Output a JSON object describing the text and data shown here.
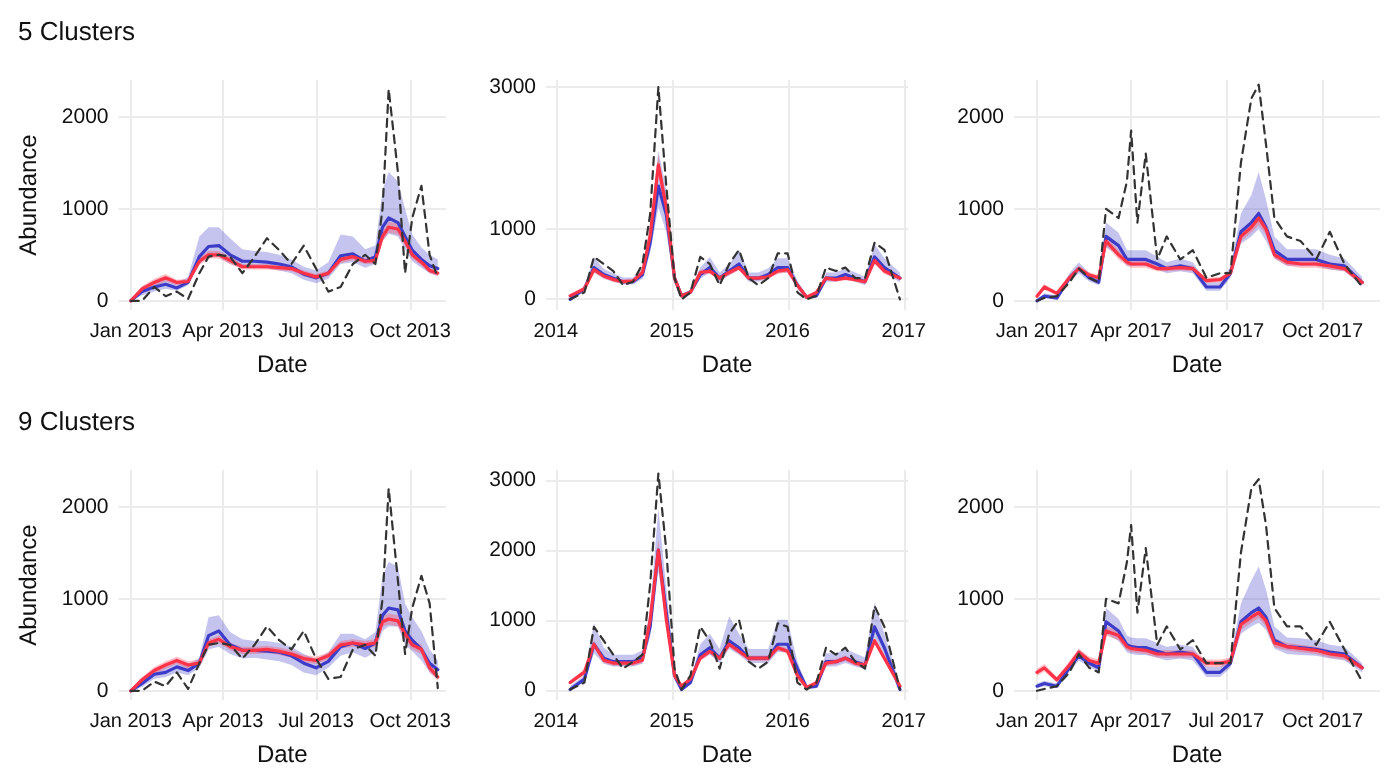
{
  "chart_data": [
    {
      "type": "line",
      "title": "5 Clusters",
      "xlabel": "Date",
      "ylabel": "Abundance",
      "grid": true,
      "marker": "none",
      "x": [
        "2013-01-01",
        "2013-01-12",
        "2013-01-24",
        "2013-02-04",
        "2013-02-15",
        "2013-02-26",
        "2013-03-09",
        "2013-03-18",
        "2013-03-28",
        "2013-04-08",
        "2013-04-20",
        "2013-05-02",
        "2013-05-14",
        "2013-05-26",
        "2013-06-07",
        "2013-06-19",
        "2013-07-01",
        "2013-07-13",
        "2013-07-25",
        "2013-08-06",
        "2013-08-18",
        "2013-08-28",
        "2013-09-04",
        "2013-09-10",
        "2013-09-19",
        "2013-09-26",
        "2013-10-03",
        "2013-10-12",
        "2013-10-20",
        "2013-10-28"
      ],
      "xlim": [
        "2012-12-20",
        "2013-11-05"
      ],
      "xticks": [
        {
          "value": "2013-01",
          "label": "Jan 2013"
        },
        {
          "value": "2013-04",
          "label": "Apr 2013"
        },
        {
          "value": "2013-07",
          "label": "Jul 2013"
        },
        {
          "value": "2013-10",
          "label": "Oct 2013"
        }
      ],
      "ylim": [
        -100,
        2400
      ],
      "yticks": [
        0,
        1000,
        2000
      ],
      "series": [
        {
          "color": "#3c3cc8",
          "line_style": "solid",
          "values": [
            0,
            100,
            150,
            180,
            140,
            200,
            480,
            590,
            600,
            500,
            430,
            430,
            420,
            400,
            370,
            290,
            250,
            300,
            490,
            510,
            430,
            480,
            800,
            900,
            850,
            700,
            550,
            450,
            380,
            350
          ],
          "lower": [
            0,
            60,
            100,
            130,
            110,
            170,
            400,
            480,
            480,
            400,
            360,
            360,
            350,
            330,
            300,
            230,
            190,
            240,
            400,
            420,
            360,
            400,
            650,
            730,
            700,
            560,
            430,
            360,
            300,
            270
          ],
          "upper": [
            0,
            150,
            220,
            260,
            200,
            260,
            700,
            800,
            800,
            680,
            560,
            540,
            530,
            500,
            450,
            370,
            330,
            420,
            720,
            700,
            560,
            600,
            1200,
            1400,
            1300,
            1000,
            720,
            580,
            500,
            450
          ]
        },
        {
          "color": "#ff3347",
          "line_style": "solid",
          "values": [
            0,
            130,
            200,
            250,
            200,
            210,
            430,
            500,
            500,
            440,
            370,
            370,
            370,
            360,
            350,
            300,
            260,
            300,
            450,
            480,
            430,
            440,
            700,
            800,
            780,
            650,
            500,
            420,
            330,
            300
          ],
          "lower": [
            0,
            100,
            160,
            210,
            170,
            180,
            390,
            460,
            460,
            400,
            340,
            340,
            340,
            330,
            320,
            270,
            230,
            270,
            410,
            440,
            400,
            400,
            650,
            740,
            720,
            600,
            460,
            380,
            300,
            270
          ],
          "upper": [
            0,
            160,
            240,
            290,
            230,
            240,
            470,
            540,
            540,
            480,
            400,
            400,
            400,
            390,
            380,
            330,
            290,
            330,
            490,
            520,
            460,
            480,
            750,
            860,
            840,
            700,
            540,
            460,
            360,
            330
          ]
        },
        {
          "color": "#333333",
          "line_style": "dashed",
          "values": [
            0,
            0,
            150,
            50,
            100,
            20,
            300,
            480,
            500,
            480,
            300,
            480,
            680,
            550,
            400,
            600,
            350,
            100,
            150,
            400,
            500,
            400,
            1000,
            2300,
            1400,
            300,
            900,
            1250,
            500,
            250
          ]
        }
      ]
    },
    {
      "type": "line",
      "xlabel": "Date",
      "grid": true,
      "marker": "none",
      "x": [
        "2014-02-15",
        "2014-04-01",
        "2014-05-01",
        "2014-06-01",
        "2014-07-01",
        "2014-08-01",
        "2014-09-01",
        "2014-10-01",
        "2014-10-25",
        "2014-11-20",
        "2014-12-15",
        "2015-01-10",
        "2015-02-01",
        "2015-03-01",
        "2015-04-01",
        "2015-05-01",
        "2015-06-01",
        "2015-07-01",
        "2015-08-01",
        "2015-09-01",
        "2015-10-01",
        "2015-11-01",
        "2015-12-01",
        "2016-01-01",
        "2016-02-01",
        "2016-03-01",
        "2016-04-01",
        "2016-05-01",
        "2016-06-01",
        "2016-07-01",
        "2016-08-01",
        "2016-09-01",
        "2016-10-01",
        "2016-11-01",
        "2016-12-20"
      ],
      "xlim": [
        "2013-12-01",
        "2017-01-15"
      ],
      "xticks": [
        {
          "value": "2014",
          "label": "2014"
        },
        {
          "value": "2015",
          "label": "2015"
        },
        {
          "value": "2016",
          "label": "2016"
        },
        {
          "value": "2017",
          "label": "2017"
        }
      ],
      "ylim": [
        -150,
        3100
      ],
      "yticks": [
        0,
        1000,
        3000
      ],
      "series": [
        {
          "color": "#3c3cc8",
          "line_style": "solid",
          "values": [
            0,
            150,
            450,
            350,
            300,
            250,
            250,
            350,
            800,
            1600,
            1200,
            300,
            50,
            100,
            350,
            450,
            300,
            400,
            500,
            300,
            300,
            350,
            450,
            450,
            200,
            30,
            50,
            300,
            300,
            350,
            300,
            250,
            600,
            450,
            300
          ],
          "lower": [
            0,
            120,
            380,
            290,
            250,
            210,
            210,
            290,
            650,
            1300,
            950,
            230,
            20,
            70,
            290,
            380,
            250,
            340,
            420,
            250,
            250,
            290,
            380,
            380,
            160,
            10,
            30,
            250,
            250,
            290,
            250,
            200,
            500,
            380,
            240
          ],
          "upper": [
            0,
            190,
            600,
            430,
            370,
            310,
            310,
            440,
            1050,
            2100,
            1550,
            380,
            80,
            140,
            450,
            600,
            380,
            500,
            700,
            380,
            380,
            440,
            580,
            580,
            260,
            60,
            80,
            380,
            380,
            440,
            380,
            320,
            780,
            580,
            380
          ]
        },
        {
          "color": "#ff3347",
          "line_style": "solid",
          "values": [
            50,
            150,
            420,
            330,
            280,
            250,
            260,
            380,
            900,
            1900,
            1300,
            300,
            50,
            100,
            380,
            400,
            300,
            380,
            450,
            300,
            300,
            320,
            400,
            420,
            200,
            30,
            100,
            300,
            280,
            300,
            280,
            250,
            550,
            400,
            300
          ],
          "lower": [
            30,
            120,
            380,
            300,
            250,
            220,
            230,
            340,
            820,
            1750,
            1180,
            260,
            30,
            80,
            340,
            360,
            270,
            340,
            410,
            270,
            270,
            290,
            360,
            380,
            170,
            15,
            80,
            270,
            250,
            270,
            250,
            220,
            500,
            360,
            270
          ],
          "upper": [
            70,
            180,
            460,
            360,
            310,
            280,
            290,
            420,
            980,
            2050,
            1420,
            340,
            70,
            120,
            420,
            440,
            330,
            420,
            490,
            330,
            330,
            350,
            440,
            460,
            230,
            45,
            120,
            330,
            310,
            330,
            310,
            280,
            600,
            440,
            330
          ]
        },
        {
          "color": "#333333",
          "line_style": "dashed",
          "values": [
            0,
            100,
            600,
            500,
            400,
            200,
            250,
            500,
            1200,
            3000,
            1600,
            300,
            0,
            100,
            600,
            500,
            200,
            500,
            700,
            300,
            200,
            300,
            650,
            650,
            100,
            0,
            50,
            450,
            400,
            450,
            300,
            300,
            800,
            700,
            0
          ]
        }
      ]
    },
    {
      "type": "line",
      "xlabel": "Date",
      "grid": true,
      "marker": "none",
      "x": [
        "2017-01-01",
        "2017-01-08",
        "2017-01-20",
        "2017-02-01",
        "2017-02-10",
        "2017-02-20",
        "2017-03-01",
        "2017-03-08",
        "2017-03-20",
        "2017-03-28",
        "2017-04-01",
        "2017-04-07",
        "2017-04-15",
        "2017-04-26",
        "2017-05-05",
        "2017-05-18",
        "2017-05-30",
        "2017-06-12",
        "2017-06-25",
        "2017-07-05",
        "2017-07-15",
        "2017-07-25",
        "2017-08-01",
        "2017-08-08",
        "2017-08-16",
        "2017-08-28",
        "2017-09-10",
        "2017-09-25",
        "2017-10-08",
        "2017-10-22",
        "2017-11-08"
      ],
      "xlim": [
        "2016-12-10",
        "2017-11-25"
      ],
      "xticks": [
        {
          "value": "2017-01",
          "label": "Jan 2017"
        },
        {
          "value": "2017-04",
          "label": "Apr 2017"
        },
        {
          "value": "2017-07",
          "label": "Jul 2017"
        },
        {
          "value": "2017-10",
          "label": "Oct 2017"
        }
      ],
      "ylim": [
        -100,
        2400
      ],
      "yticks": [
        0,
        1000,
        2000
      ],
      "series": [
        {
          "color": "#3c3cc8",
          "line_style": "solid",
          "values": [
            0,
            50,
            30,
            250,
            350,
            250,
            200,
            700,
            600,
            450,
            450,
            450,
            450,
            400,
            350,
            380,
            350,
            150,
            150,
            300,
            750,
            850,
            950,
            800,
            550,
            450,
            450,
            450,
            400,
            380,
            200
          ],
          "lower": [
            0,
            30,
            10,
            210,
            300,
            210,
            170,
            580,
            500,
            380,
            380,
            380,
            380,
            340,
            300,
            320,
            300,
            110,
            110,
            250,
            620,
            700,
            780,
            650,
            460,
            380,
            380,
            380,
            340,
            320,
            160
          ],
          "upper": [
            20,
            80,
            60,
            300,
            420,
            300,
            240,
            850,
            740,
            550,
            550,
            550,
            550,
            480,
            420,
            460,
            420,
            200,
            200,
            370,
            950,
            1150,
            1400,
            1100,
            700,
            560,
            560,
            560,
            500,
            460,
            260
          ]
        },
        {
          "color": "#ff3347",
          "line_style": "solid",
          "values": [
            50,
            150,
            80,
            250,
            350,
            280,
            250,
            650,
            500,
            420,
            400,
            400,
            400,
            350,
            350,
            360,
            350,
            220,
            230,
            300,
            700,
            800,
            900,
            780,
            500,
            420,
            400,
            400,
            380,
            350,
            200
          ],
          "lower": [
            30,
            120,
            60,
            220,
            320,
            250,
            220,
            600,
            450,
            380,
            360,
            360,
            360,
            320,
            320,
            330,
            320,
            190,
            200,
            270,
            650,
            740,
            820,
            720,
            460,
            380,
            360,
            360,
            340,
            320,
            170
          ],
          "upper": [
            70,
            180,
            100,
            280,
            380,
            310,
            280,
            700,
            550,
            460,
            440,
            440,
            440,
            380,
            380,
            390,
            380,
            250,
            260,
            330,
            750,
            860,
            980,
            840,
            540,
            460,
            440,
            440,
            420,
            380,
            230
          ]
        },
        {
          "color": "#333333",
          "line_style": "dashed",
          "values": [
            0,
            30,
            50,
            200,
            350,
            250,
            200,
            1000,
            900,
            1300,
            1850,
            850,
            1600,
            450,
            700,
            450,
            550,
            250,
            300,
            300,
            1500,
            2200,
            2350,
            1700,
            900,
            700,
            650,
            450,
            750,
            400,
            150
          ]
        }
      ]
    },
    {
      "type": "line",
      "title": "9 Clusters",
      "xlabel": "Date",
      "ylabel": "Abundance",
      "grid": true,
      "marker": "none",
      "x": [
        "2013-01-01",
        "2013-01-12",
        "2013-01-24",
        "2013-02-04",
        "2013-02-15",
        "2013-02-26",
        "2013-03-09",
        "2013-03-18",
        "2013-03-28",
        "2013-04-08",
        "2013-04-20",
        "2013-05-02",
        "2013-05-14",
        "2013-05-26",
        "2013-06-07",
        "2013-06-19",
        "2013-07-01",
        "2013-07-13",
        "2013-07-25",
        "2013-08-06",
        "2013-08-18",
        "2013-08-28",
        "2013-09-04",
        "2013-09-10",
        "2013-09-19",
        "2013-09-26",
        "2013-10-03",
        "2013-10-12",
        "2013-10-20",
        "2013-10-28"
      ],
      "xlim": [
        "2012-12-20",
        "2013-11-05"
      ],
      "xticks": [
        {
          "value": "2013-01",
          "label": "Jan 2013"
        },
        {
          "value": "2013-04",
          "label": "Apr 2013"
        },
        {
          "value": "2013-07",
          "label": "Jul 2013"
        },
        {
          "value": "2013-10",
          "label": "Oct 2013"
        }
      ],
      "ylim": [
        -100,
        2400
      ],
      "yticks": [
        0,
        1000,
        2000
      ],
      "series": [
        {
          "color": "#3c3cc8",
          "line_style": "solid",
          "values": [
            0,
            80,
            180,
            200,
            260,
            220,
            300,
            600,
            650,
            500,
            440,
            440,
            430,
            420,
            380,
            300,
            250,
            320,
            480,
            520,
            460,
            520,
            820,
            900,
            880,
            650,
            550,
            450,
            300,
            230
          ],
          "lower": [
            0,
            40,
            130,
            150,
            200,
            170,
            250,
            450,
            480,
            400,
            350,
            360,
            340,
            320,
            280,
            200,
            170,
            250,
            380,
            420,
            360,
            420,
            650,
            700,
            700,
            500,
            430,
            330,
            200,
            130
          ],
          "upper": [
            0,
            130,
            240,
            260,
            320,
            280,
            360,
            800,
            820,
            640,
            560,
            540,
            540,
            520,
            480,
            400,
            340,
            420,
            620,
            620,
            560,
            640,
            1250,
            1400,
            1350,
            950,
            800,
            650,
            450,
            330
          ]
        },
        {
          "color": "#ff3347",
          "line_style": "solid",
          "values": [
            0,
            120,
            220,
            280,
            330,
            280,
            300,
            520,
            560,
            480,
            440,
            440,
            450,
            430,
            400,
            350,
            330,
            380,
            500,
            520,
            500,
            520,
            750,
            780,
            760,
            620,
            500,
            450,
            250,
            150
          ],
          "lower": [
            0,
            90,
            180,
            240,
            290,
            240,
            270,
            480,
            520,
            440,
            400,
            400,
            410,
            390,
            360,
            310,
            290,
            340,
            460,
            480,
            460,
            480,
            700,
            720,
            700,
            560,
            450,
            400,
            200,
            110
          ],
          "upper": [
            0,
            150,
            260,
            320,
            370,
            320,
            340,
            560,
            600,
            520,
            480,
            480,
            490,
            470,
            440,
            390,
            370,
            420,
            540,
            560,
            540,
            560,
            800,
            840,
            820,
            680,
            550,
            500,
            300,
            190
          ]
        },
        {
          "color": "#333333",
          "line_style": "dashed",
          "values": [
            0,
            0,
            100,
            50,
            200,
            20,
            300,
            500,
            520,
            500,
            350,
            500,
            700,
            550,
            450,
            650,
            350,
            130,
            150,
            450,
            500,
            380,
            1000,
            2200,
            1200,
            400,
            900,
            1250,
            950,
            30
          ]
        }
      ]
    },
    {
      "type": "line",
      "xlabel": "Date",
      "grid": true,
      "marker": "none",
      "x": [
        "2014-02-15",
        "2014-04-01",
        "2014-05-01",
        "2014-06-01",
        "2014-07-01",
        "2014-08-01",
        "2014-09-01",
        "2014-10-01",
        "2014-10-25",
        "2014-11-20",
        "2014-12-15",
        "2015-01-10",
        "2015-02-01",
        "2015-03-01",
        "2015-04-01",
        "2015-05-01",
        "2015-06-01",
        "2015-07-01",
        "2015-08-01",
        "2015-09-01",
        "2015-10-01",
        "2015-11-01",
        "2015-12-01",
        "2016-01-01",
        "2016-02-01",
        "2016-03-01",
        "2016-04-01",
        "2016-05-01",
        "2016-06-01",
        "2016-07-01",
        "2016-08-01",
        "2016-09-01",
        "2016-10-01",
        "2016-11-01",
        "2016-12-20"
      ],
      "xlim": [
        "2013-12-01",
        "2017-01-15"
      ],
      "xticks": [
        {
          "value": "2014",
          "label": "2014"
        },
        {
          "value": "2015",
          "label": "2015"
        },
        {
          "value": "2016",
          "label": "2016"
        },
        {
          "value": "2017",
          "label": "2017"
        }
      ],
      "ylim": [
        -150,
        3150
      ],
      "yticks": [
        0,
        1000,
        2000,
        3000
      ],
      "series": [
        {
          "color": "#3c3cc8",
          "line_style": "solid",
          "values": [
            0,
            150,
            650,
            450,
            400,
            400,
            400,
            450,
            900,
            2000,
            1100,
            200,
            0,
            100,
            500,
            600,
            450,
            700,
            600,
            450,
            450,
            450,
            650,
            650,
            300,
            30,
            50,
            400,
            400,
            450,
            400,
            350,
            900,
            600,
            0
          ],
          "lower": [
            0,
            100,
            520,
            370,
            330,
            330,
            330,
            370,
            750,
            1700,
            900,
            140,
            0,
            70,
            420,
            500,
            380,
            580,
            500,
            380,
            380,
            380,
            540,
            540,
            240,
            10,
            20,
            330,
            330,
            380,
            330,
            290,
            750,
            500,
            0
          ],
          "upper": [
            50,
            200,
            950,
            600,
            500,
            500,
            500,
            560,
            1150,
            2600,
            1450,
            280,
            50,
            150,
            650,
            800,
            580,
            1050,
            800,
            580,
            580,
            580,
            1000,
            1000,
            400,
            60,
            90,
            520,
            520,
            580,
            520,
            460,
            1250,
            800,
            80
          ]
        },
        {
          "color": "#ff3347",
          "line_style": "solid",
          "values": [
            100,
            250,
            650,
            420,
            380,
            380,
            380,
            420,
            1000,
            2000,
            1000,
            200,
            50,
            150,
            450,
            550,
            450,
            650,
            550,
            450,
            450,
            450,
            600,
            550,
            200,
            30,
            100,
            380,
            400,
            450,
            380,
            350,
            700,
            450,
            50
          ],
          "lower": [
            70,
            210,
            600,
            380,
            340,
            340,
            340,
            380,
            930,
            1850,
            900,
            160,
            30,
            120,
            410,
            510,
            410,
            610,
            510,
            410,
            410,
            410,
            560,
            510,
            170,
            15,
            80,
            340,
            360,
            410,
            340,
            310,
            650,
            400,
            30
          ],
          "upper": [
            130,
            290,
            700,
            460,
            420,
            420,
            420,
            460,
            1070,
            2150,
            1100,
            240,
            70,
            180,
            490,
            590,
            490,
            690,
            590,
            490,
            490,
            490,
            640,
            590,
            230,
            45,
            120,
            420,
            440,
            490,
            420,
            390,
            750,
            500,
            80
          ]
        },
        {
          "color": "#333333",
          "line_style": "dashed",
          "values": [
            0,
            100,
            900,
            700,
            500,
            300,
            400,
            500,
            1500,
            3100,
            2000,
            300,
            0,
            200,
            900,
            700,
            300,
            800,
            1000,
            400,
            300,
            400,
            950,
            900,
            100,
            0,
            100,
            600,
            500,
            600,
            400,
            300,
            1200,
            900,
            0
          ]
        }
      ]
    },
    {
      "type": "line",
      "xlabel": "Date",
      "grid": true,
      "marker": "none",
      "x": [
        "2017-01-01",
        "2017-01-08",
        "2017-01-20",
        "2017-02-01",
        "2017-02-10",
        "2017-02-20",
        "2017-03-01",
        "2017-03-08",
        "2017-03-20",
        "2017-03-28",
        "2017-04-01",
        "2017-04-07",
        "2017-04-15",
        "2017-04-26",
        "2017-05-05",
        "2017-05-18",
        "2017-05-30",
        "2017-06-12",
        "2017-06-25",
        "2017-07-05",
        "2017-07-15",
        "2017-07-25",
        "2017-08-01",
        "2017-08-08",
        "2017-08-16",
        "2017-08-28",
        "2017-09-10",
        "2017-09-25",
        "2017-10-08",
        "2017-10-22",
        "2017-11-08"
      ],
      "xlim": [
        "2016-12-10",
        "2017-11-25"
      ],
      "xticks": [
        {
          "value": "2017-01",
          "label": "Jan 2017"
        },
        {
          "value": "2017-04",
          "label": "Apr 2017"
        },
        {
          "value": "2017-07",
          "label": "Jul 2017"
        },
        {
          "value": "2017-10",
          "label": "Oct 2017"
        }
      ],
      "ylim": [
        -100,
        2400
      ],
      "yticks": [
        0,
        1000,
        2000
      ],
      "series": [
        {
          "color": "#3c3cc8",
          "line_style": "solid",
          "values": [
            50,
            80,
            50,
            250,
            380,
            300,
            250,
            750,
            650,
            500,
            480,
            470,
            470,
            430,
            400,
            420,
            400,
            200,
            200,
            300,
            750,
            850,
            900,
            800,
            550,
            480,
            470,
            450,
            420,
            400,
            250
          ],
          "lower": [
            30,
            50,
            30,
            210,
            330,
            260,
            210,
            620,
            540,
            420,
            400,
            390,
            390,
            360,
            330,
            350,
            330,
            150,
            150,
            250,
            620,
            700,
            740,
            660,
            460,
            400,
            390,
            380,
            350,
            330,
            200
          ],
          "upper": [
            80,
            110,
            80,
            300,
            450,
            350,
            290,
            900,
            780,
            600,
            580,
            570,
            570,
            520,
            480,
            500,
            480,
            260,
            260,
            370,
            950,
            1200,
            1350,
            1100,
            700,
            580,
            570,
            550,
            500,
            480,
            300
          ]
        },
        {
          "color": "#ff3347",
          "line_style": "solid",
          "values": [
            200,
            250,
            120,
            280,
            420,
            330,
            300,
            650,
            600,
            480,
            460,
            450,
            440,
            400,
            400,
            400,
            400,
            300,
            300,
            320,
            720,
            800,
            850,
            760,
            520,
            480,
            460,
            440,
            400,
            380,
            250
          ],
          "lower": [
            160,
            210,
            90,
            240,
            380,
            290,
            260,
            600,
            550,
            440,
            420,
            410,
            400,
            360,
            360,
            360,
            360,
            260,
            260,
            280,
            660,
            740,
            790,
            700,
            470,
            440,
            420,
            400,
            360,
            340,
            220
          ],
          "upper": [
            240,
            290,
            150,
            320,
            460,
            370,
            340,
            700,
            650,
            520,
            500,
            490,
            480,
            440,
            440,
            440,
            440,
            340,
            340,
            360,
            780,
            860,
            910,
            820,
            570,
            520,
            500,
            480,
            440,
            420,
            280
          ]
        },
        {
          "color": "#333333",
          "line_style": "dashed",
          "values": [
            0,
            20,
            50,
            200,
            400,
            250,
            200,
            1000,
            950,
            1400,
            1800,
            850,
            1550,
            500,
            700,
            450,
            550,
            300,
            300,
            300,
            1500,
            2200,
            2300,
            1800,
            900,
            700,
            700,
            500,
            750,
            450,
            100
          ]
        }
      ]
    }
  ]
}
